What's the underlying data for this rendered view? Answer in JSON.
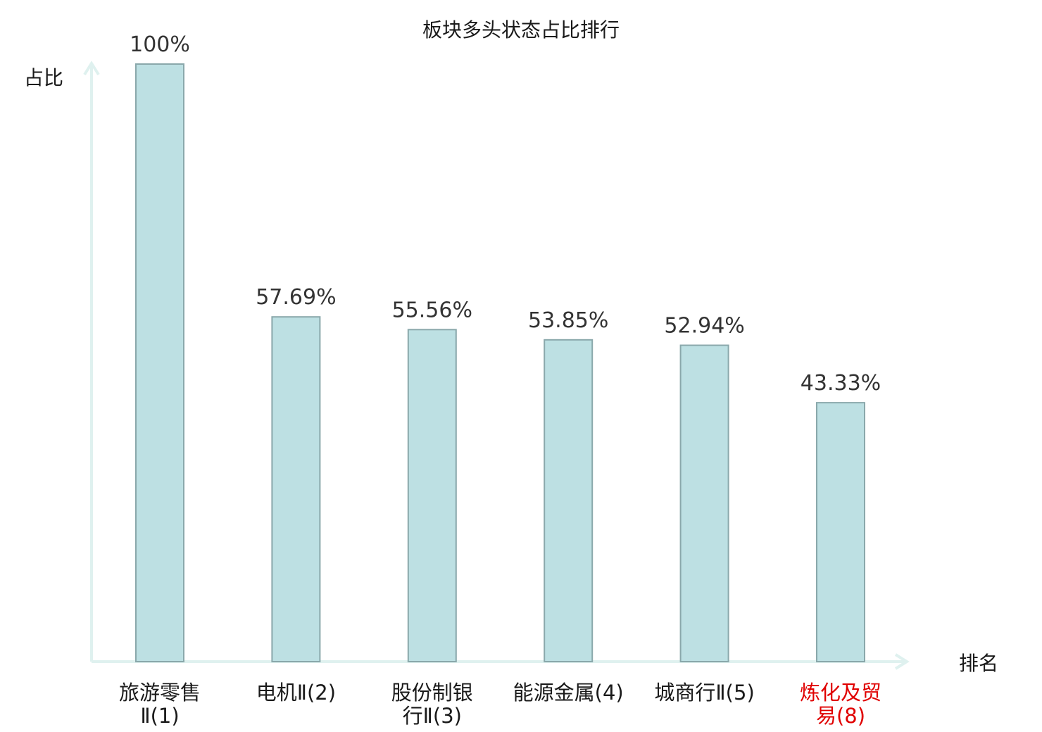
{
  "chart_data": {
    "type": "bar",
    "title": "板块多头状态占比排行",
    "ylabel": "占比",
    "xlabel": "排名",
    "ylim": [
      0,
      100
    ],
    "grid": false,
    "categories": [
      {
        "lines": [
          "旅游零售",
          "Ⅱ(1)"
        ],
        "highlight": false
      },
      {
        "lines": [
          "电机Ⅱ(2)"
        ],
        "highlight": false
      },
      {
        "lines": [
          "股份制银",
          "行Ⅱ(3)"
        ],
        "highlight": false
      },
      {
        "lines": [
          "能源金属(4)"
        ],
        "highlight": false
      },
      {
        "lines": [
          "城商行Ⅱ(5)"
        ],
        "highlight": false
      },
      {
        "lines": [
          "炼化及贸",
          "易(8)"
        ],
        "highlight": true
      }
    ],
    "values": [
      100,
      57.69,
      55.56,
      53.85,
      52.94,
      43.33
    ],
    "value_labels": [
      "100%",
      "57.69%",
      "55.56%",
      "53.85%",
      "52.94%",
      "43.33%"
    ],
    "colors": {
      "bar_fill": "#bde0e3",
      "bar_stroke": "#8aa8ab",
      "axis": "#dff1ef",
      "text": "#1a1a1a",
      "highlight_text": "#e00000"
    }
  }
}
